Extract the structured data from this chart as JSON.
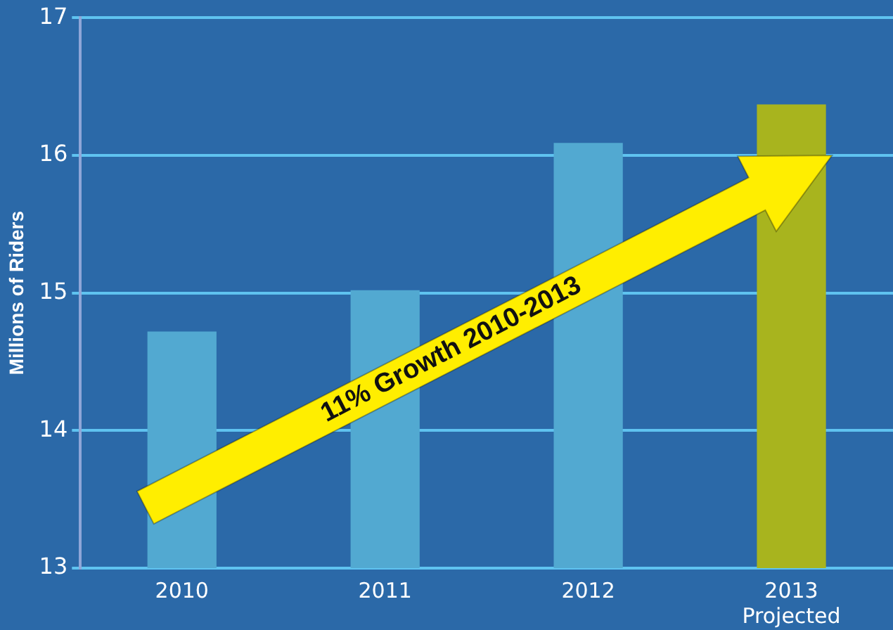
{
  "chart_data": {
    "type": "bar",
    "categories": [
      "2010",
      "2011",
      "2012",
      "2013\nProjected"
    ],
    "values": [
      14.72,
      15.02,
      16.09,
      16.37
    ],
    "colors": [
      "#52a9d1",
      "#52a9d1",
      "#52a9d1",
      "#a8b41e"
    ],
    "ylabel": "Millions of Riders",
    "ylim": [
      13,
      17
    ],
    "yticks": [
      13,
      14,
      15,
      16,
      17
    ],
    "grid": "y",
    "annotations": [
      "11% Growth 2010-2013"
    ]
  }
}
